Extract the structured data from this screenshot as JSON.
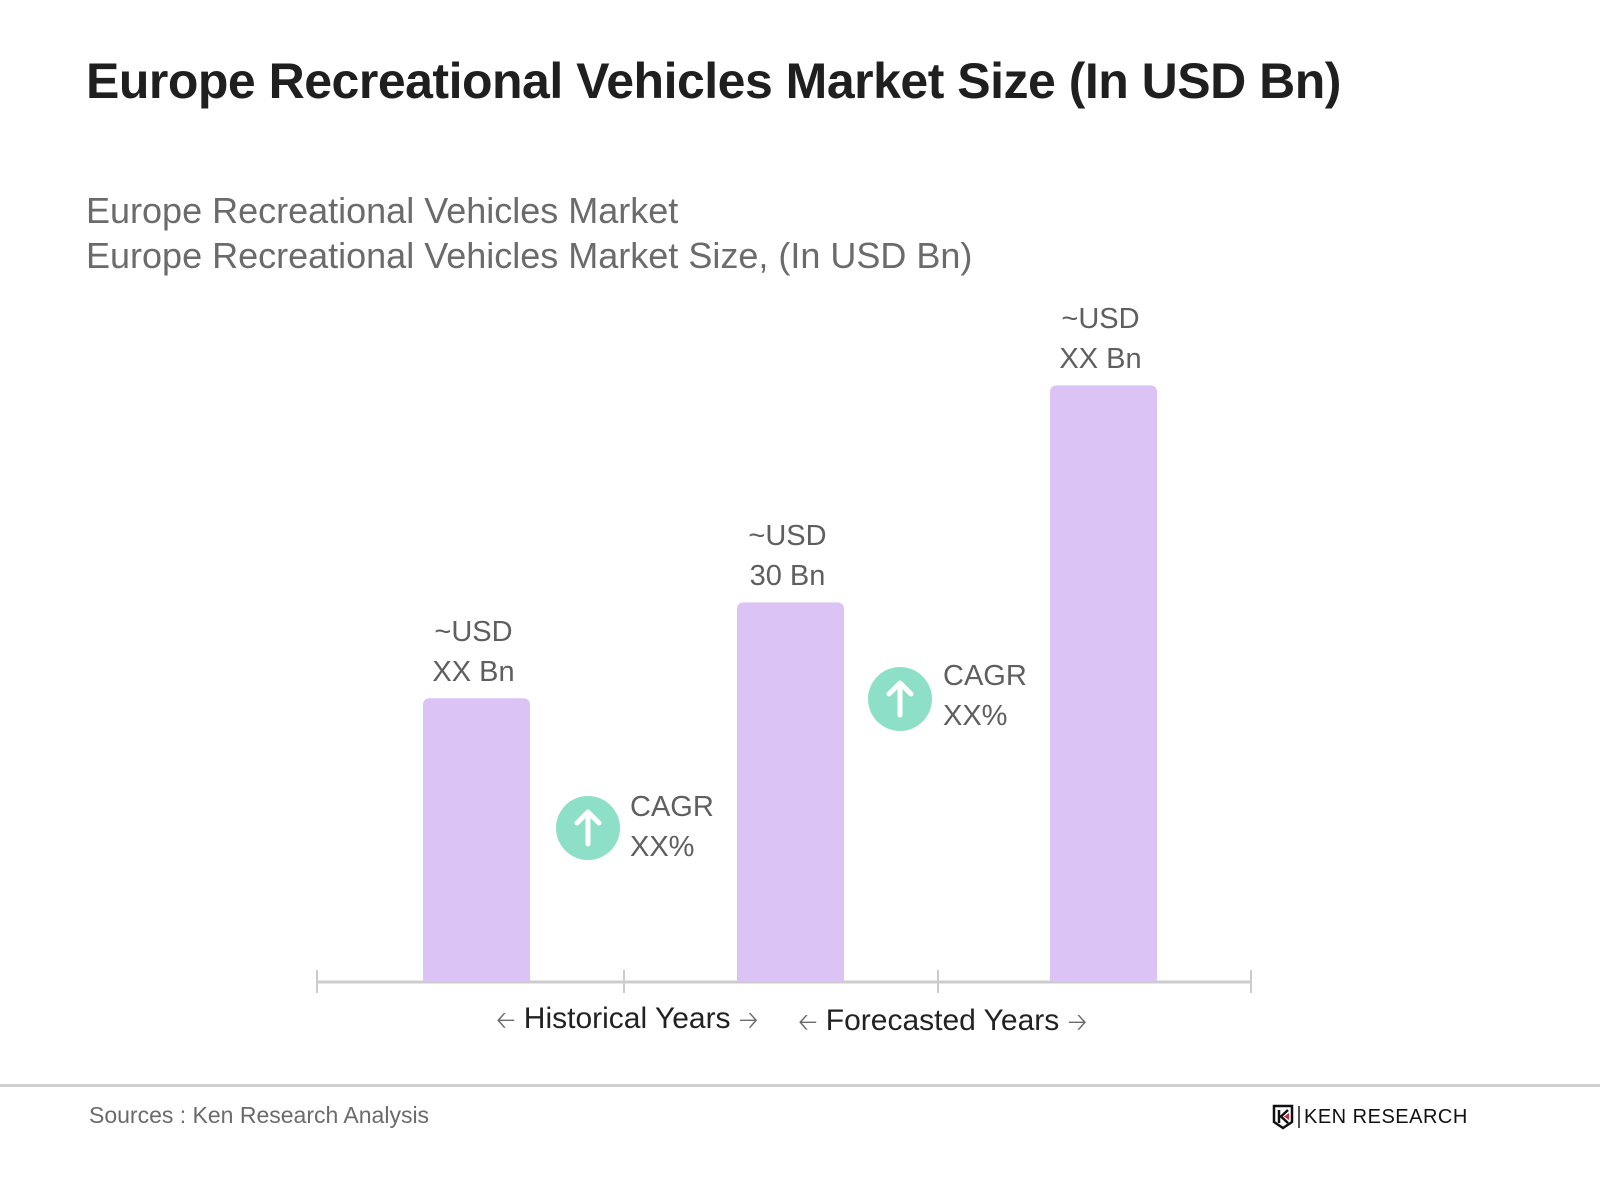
{
  "chart_data": {
    "type": "bar",
    "title": "Europe Recreational Vehicles Market Size (In USD Bn)",
    "subtitle_lines": [
      "Europe Recreational Vehicles Market",
      "Europe Recreational Vehicles Market Size, (In USD Bn)"
    ],
    "categories": [
      "",
      "",
      ""
    ],
    "values": [
      22.4,
      30,
      47.2
    ],
    "data_labels": [
      [
        "~USD",
        "XX Bn"
      ],
      [
        "~USD",
        "30 Bn"
      ],
      [
        "~USD",
        "XX Bn"
      ]
    ],
    "cagr_annotations": [
      [
        "CAGR",
        "XX%"
      ],
      [
        "CAGR",
        "XX%"
      ]
    ],
    "periods": [
      "Historical Years",
      "Forecasted Years"
    ],
    "ylim": [
      0,
      50
    ],
    "grid": false,
    "bar_color": "#dcc3f5",
    "cagr_icon_color": "#8de0c7",
    "axis_color": "#cccccc"
  },
  "footer": {
    "source": "Sources : Ken Research Analysis",
    "logo_text": "KEN RESEARCH"
  }
}
